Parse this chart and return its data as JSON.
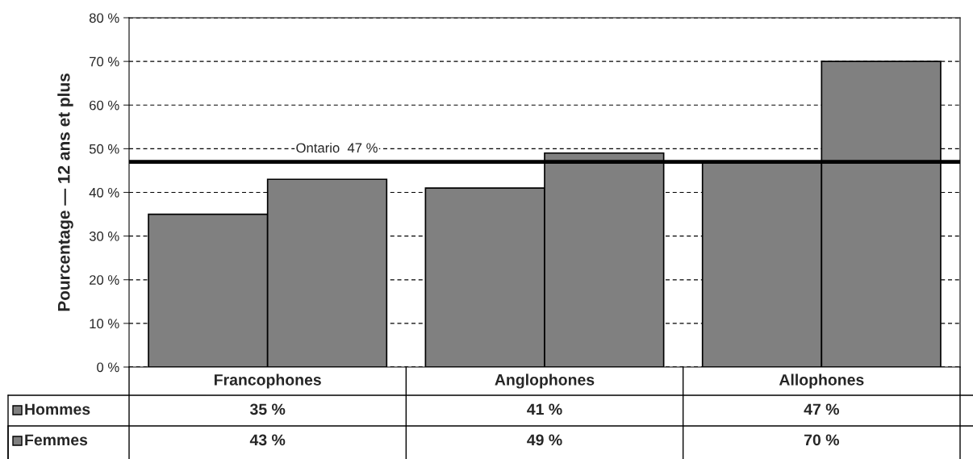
{
  "chart_data": {
    "type": "bar",
    "ylabel": "Pourcentage — 12 ans et plus",
    "categories": [
      "Francophones",
      "Anglophones",
      "Allophones"
    ],
    "series": [
      {
        "name": "Hommes",
        "color": "#808080",
        "values": [
          35,
          41,
          47
        ],
        "value_labels": [
          "35 %",
          "41 %",
          "47 %"
        ]
      },
      {
        "name": "Femmes",
        "color": "#808080",
        "values": [
          43,
          49,
          70
        ],
        "value_labels": [
          "43 %",
          "49 %",
          "70 %"
        ]
      }
    ],
    "ylim": [
      0,
      80
    ],
    "yticks": [
      {
        "value": 0,
        "label": "0 %"
      },
      {
        "value": 10,
        "label": "10 %"
      },
      {
        "value": 20,
        "label": "20 %"
      },
      {
        "value": 30,
        "label": "30 %"
      },
      {
        "value": 40,
        "label": "40 %"
      },
      {
        "value": 50,
        "label": "50 %"
      },
      {
        "value": 60,
        "label": "60 %"
      },
      {
        "value": 70,
        "label": "70 %"
      },
      {
        "value": 80,
        "label": "80 %"
      }
    ],
    "grid": "y",
    "legend": "bottom left",
    "ref_lines": [
      {
        "axis": "y",
        "value": 47,
        "label": "Ontario  47 %",
        "color": "#000000",
        "line_style": "solid"
      }
    ]
  }
}
